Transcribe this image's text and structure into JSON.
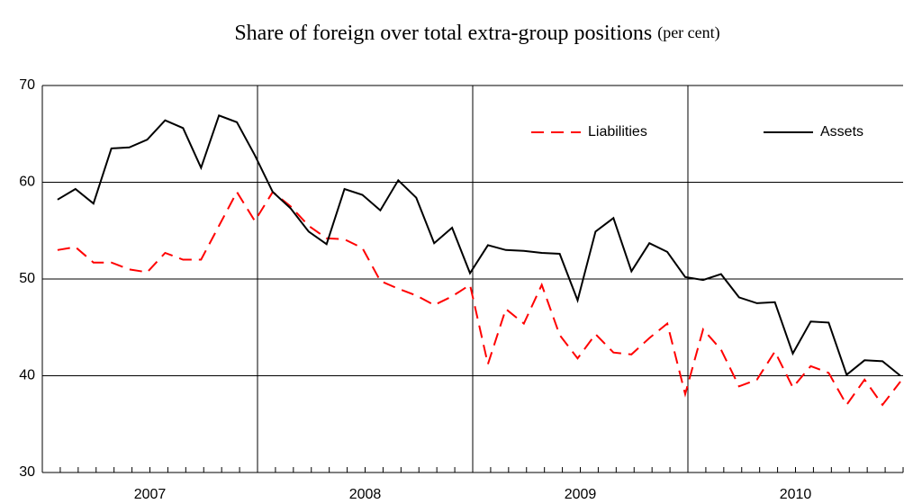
{
  "chart_data": {
    "type": "line",
    "title": "Share of foreign over total extra-group positions",
    "subtitle": "(per cent)",
    "categories": [
      null,
      null,
      null,
      null,
      null,
      null,
      null,
      null,
      null,
      null,
      null,
      null,
      null,
      null,
      null,
      null,
      null,
      null,
      null,
      null,
      null,
      null,
      null,
      null,
      null,
      null,
      null,
      null,
      null,
      null,
      null,
      null,
      null,
      null,
      null,
      null,
      null,
      null,
      null,
      null,
      null,
      null,
      null,
      null,
      null,
      null,
      null,
      null
    ],
    "year_labels": [
      "2007",
      "2008",
      "2009",
      "2010"
    ],
    "series": [
      {
        "name": "Liabilities",
        "color": "#ff0000",
        "dash": true,
        "values": [
          53.0,
          53.3,
          51.7,
          51.7,
          51.0,
          50.7,
          52.7,
          52.0,
          52.0,
          55.5,
          59.0,
          56.0,
          59.0,
          57.5,
          55.5,
          54.2,
          54.1,
          53.2,
          49.8,
          49.0,
          48.3,
          47.3,
          48.2,
          49.4,
          41.2,
          46.9,
          45.4,
          49.4,
          44.2,
          41.8,
          44.3,
          42.4,
          42.2,
          43.9,
          45.4,
          38.1,
          44.8,
          42.7,
          38.9,
          39.6,
          42.5,
          38.8,
          41.0,
          40.3,
          37.0,
          39.6,
          37.0,
          39.4
        ]
      },
      {
        "name": "Assets",
        "color": "#000000",
        "dash": false,
        "values": [
          58.2,
          59.3,
          57.8,
          63.5,
          63.6,
          64.4,
          66.4,
          65.6,
          61.5,
          66.9,
          66.2,
          62.8,
          59.0,
          57.3,
          54.9,
          53.6,
          59.3,
          58.7,
          57.1,
          60.2,
          58.4,
          53.7,
          55.3,
          50.6,
          53.5,
          53.0,
          52.9,
          52.7,
          52.6,
          47.8,
          54.9,
          56.3,
          50.8,
          53.7,
          52.8,
          50.2,
          49.9,
          50.5,
          48.1,
          47.5,
          47.6,
          42.3,
          45.6,
          45.5,
          40.1,
          41.6,
          41.5,
          40.0
        ]
      }
    ],
    "ylim": [
      30,
      70
    ],
    "yticks": [
      30,
      40,
      50,
      60,
      70
    ],
    "grid": true
  }
}
